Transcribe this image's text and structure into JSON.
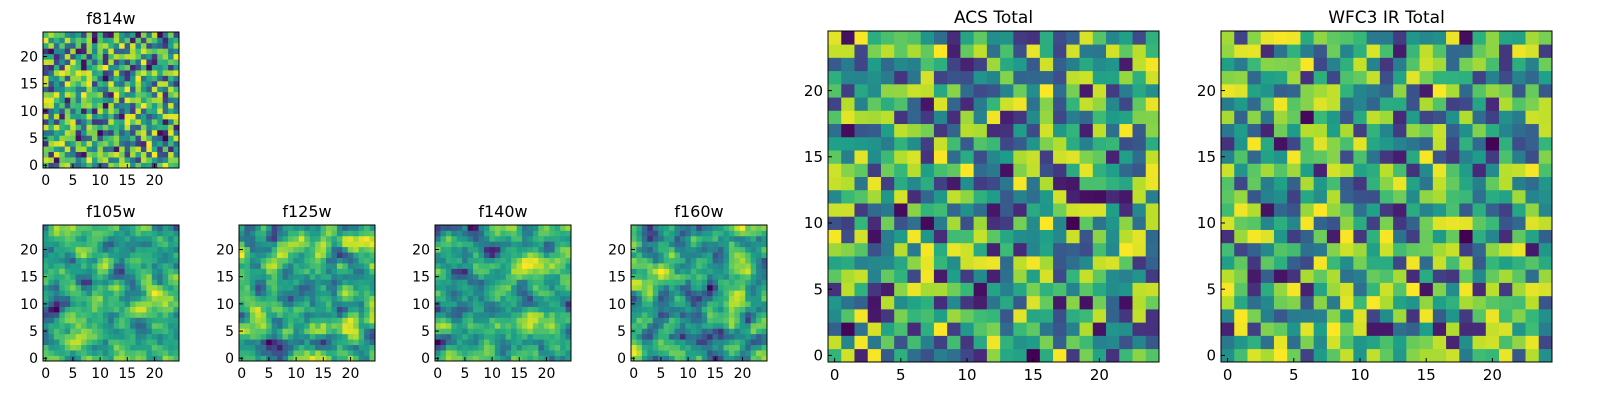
{
  "chart_data": [
    {
      "id": "f814w",
      "type": "heatmap",
      "title": "f814w",
      "grid_size": 25,
      "xlim": [
        0,
        24
      ],
      "ylim": [
        0,
        24
      ],
      "x_ticks": [
        0,
        5,
        10,
        15,
        20
      ],
      "y_ticks": [
        0,
        5,
        10,
        15,
        20
      ],
      "colormap": "viridis",
      "value_range": [
        0,
        1
      ],
      "seed": 814,
      "smooth": 0,
      "bias": 0.7
    },
    {
      "id": "f105w",
      "type": "heatmap",
      "title": "f105w",
      "grid_size": 25,
      "xlim": [
        0,
        24
      ],
      "ylim": [
        0,
        24
      ],
      "x_ticks": [
        0,
        5,
        10,
        15,
        20
      ],
      "y_ticks": [
        0,
        5,
        10,
        15,
        20
      ],
      "colormap": "viridis",
      "value_range": [
        0,
        1
      ],
      "seed": 105,
      "smooth": 1,
      "bias": 0.68
    },
    {
      "id": "f125w",
      "type": "heatmap",
      "title": "f125w",
      "grid_size": 25,
      "xlim": [
        0,
        24
      ],
      "ylim": [
        0,
        24
      ],
      "x_ticks": [
        0,
        5,
        10,
        15,
        20
      ],
      "y_ticks": [
        0,
        5,
        10,
        15,
        20
      ],
      "colormap": "viridis",
      "value_range": [
        0,
        1
      ],
      "seed": 125,
      "smooth": 1,
      "bias": 0.75
    },
    {
      "id": "f140w",
      "type": "heatmap",
      "title": "f140w",
      "grid_size": 25,
      "xlim": [
        0,
        24
      ],
      "ylim": [
        0,
        24
      ],
      "x_ticks": [
        0,
        5,
        10,
        15,
        20
      ],
      "y_ticks": [
        0,
        5,
        10,
        15,
        20
      ],
      "colormap": "viridis",
      "value_range": [
        0,
        1
      ],
      "seed": 140,
      "smooth": 1,
      "bias": 0.68
    },
    {
      "id": "f160w",
      "type": "heatmap",
      "title": "f160w",
      "grid_size": 25,
      "xlim": [
        0,
        24
      ],
      "ylim": [
        0,
        24
      ],
      "x_ticks": [
        0,
        5,
        10,
        15,
        20
      ],
      "y_ticks": [
        0,
        5,
        10,
        15,
        20
      ],
      "colormap": "viridis",
      "value_range": [
        0,
        1
      ],
      "seed": 160,
      "smooth": 1,
      "bias": 0.7
    },
    {
      "id": "acs-total",
      "type": "heatmap",
      "title": "ACS Total",
      "grid_size": 25,
      "xlim": [
        0,
        24
      ],
      "ylim": [
        0,
        24
      ],
      "x_ticks": [
        0,
        5,
        10,
        15,
        20
      ],
      "y_ticks": [
        0,
        5,
        10,
        15,
        20
      ],
      "colormap": "viridis",
      "value_range": [
        0,
        1
      ],
      "seed": 900,
      "smooth": 0,
      "bias": 0.8
    },
    {
      "id": "wfc3-ir-total",
      "type": "heatmap",
      "title": "WFC3 IR Total",
      "grid_size": 25,
      "xlim": [
        0,
        24
      ],
      "ylim": [
        0,
        24
      ],
      "x_ticks": [
        0,
        5,
        10,
        15,
        20
      ],
      "y_ticks": [
        0,
        5,
        10,
        15,
        20
      ],
      "colormap": "viridis",
      "value_range": [
        0,
        1
      ],
      "seed": 301,
      "smooth": 0,
      "bias": 0.66
    }
  ]
}
